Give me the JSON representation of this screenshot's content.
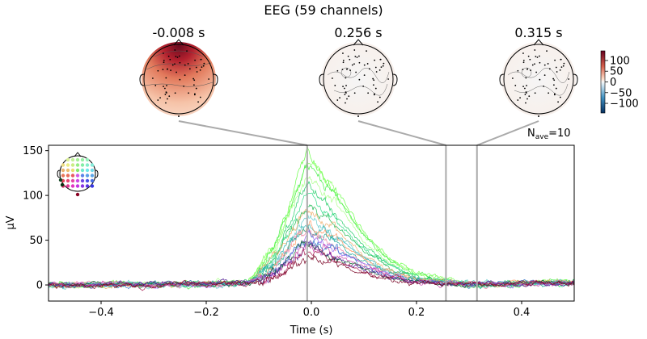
{
  "title": "EEG (59 channels)",
  "nave_label": "N",
  "nave_sub": "ave",
  "nave_value": "=10",
  "topomaps": [
    {
      "time_label": "-0.008 s",
      "time": -0.008,
      "pattern": "frontal-positive"
    },
    {
      "time_label": "0.256 s",
      "time": 0.256,
      "pattern": "near-zero"
    },
    {
      "time_label": "0.315 s",
      "time": 0.315,
      "pattern": "near-zero"
    }
  ],
  "colorbar": {
    "colormap": "RdBu_r",
    "range": [
      -145,
      145
    ],
    "ticks": [
      100,
      50,
      0,
      -50,
      -100
    ],
    "tick_labels": [
      "100",
      "50",
      "0",
      "−50",
      "−100"
    ]
  },
  "chart_data": {
    "type": "line",
    "xlabel": "Time (s)",
    "ylabel": "µV",
    "xlim": [
      -0.5,
      0.5
    ],
    "ylim": [
      -18,
      156
    ],
    "xticks": [
      -0.4,
      -0.2,
      0.0,
      0.2,
      0.4
    ],
    "xtick_labels": [
      "−0.4",
      "−0.2",
      "0.0",
      "0.2",
      "0.4"
    ],
    "yticks": [
      0,
      50,
      100,
      150
    ],
    "ytick_labels": [
      "0",
      "50",
      "100",
      "150"
    ],
    "grid": false,
    "vlines": [
      -0.008,
      0.256,
      0.315
    ],
    "x": [
      -0.5,
      -0.3,
      -0.12,
      -0.07,
      -0.008,
      0.05,
      0.1,
      0.15,
      0.2,
      0.3,
      0.4,
      0.5
    ],
    "series": [
      {
        "color": "#66ff44",
        "values": [
          0,
          1,
          3,
          44,
          148,
          104,
          59,
          30,
          12,
          0,
          2,
          3
        ]
      },
      {
        "color": "#88ff66",
        "values": [
          0,
          -1,
          3,
          43,
          142,
          99,
          57,
          28,
          11,
          1,
          2,
          2
        ]
      },
      {
        "color": "#44ee44",
        "values": [
          1,
          0,
          2,
          41,
          135,
          95,
          54,
          27,
          11,
          0,
          1,
          3
        ]
      },
      {
        "color": "#aaff88",
        "values": [
          0,
          1,
          3,
          38,
          125,
          88,
          50,
          25,
          10,
          -1,
          2,
          2
        ]
      },
      {
        "color": "#22cc66",
        "values": [
          -1,
          1,
          2,
          33,
          110,
          77,
          44,
          22,
          9,
          0,
          2,
          3
        ]
      },
      {
        "color": "#33dd88",
        "values": [
          0,
          0,
          3,
          30,
          100,
          70,
          40,
          20,
          8,
          1,
          1,
          2
        ]
      },
      {
        "color": "#22bb55",
        "values": [
          1,
          1,
          2,
          28,
          92,
          64,
          37,
          18,
          7,
          0,
          2,
          3
        ]
      },
      {
        "color": "#f0b070",
        "values": [
          0,
          -1,
          3,
          26,
          85,
          60,
          34,
          17,
          7,
          0,
          2,
          2
        ]
      },
      {
        "color": "#66cccc",
        "values": [
          0,
          1,
          2,
          24,
          80,
          56,
          32,
          16,
          6,
          1,
          1,
          3
        ]
      },
      {
        "color": "#44bbbb",
        "values": [
          -1,
          0,
          3,
          23,
          75,
          53,
          30,
          15,
          6,
          0,
          2,
          2
        ]
      },
      {
        "color": "#ff9966",
        "values": [
          0,
          1,
          2,
          21,
          70,
          49,
          28,
          14,
          6,
          0,
          2,
          3
        ]
      },
      {
        "color": "#22aa99",
        "values": [
          1,
          0,
          3,
          20,
          65,
          46,
          26,
          13,
          5,
          -1,
          1,
          2
        ]
      },
      {
        "color": "#ee88aa",
        "values": [
          0,
          1,
          2,
          18,
          60,
          42,
          24,
          12,
          5,
          0,
          2,
          3
        ]
      },
      {
        "color": "#9966ee",
        "values": [
          0,
          -1,
          3,
          17,
          55,
          39,
          22,
          11,
          4,
          1,
          1,
          2
        ]
      },
      {
        "color": "#3377cc",
        "values": [
          -1,
          0,
          2,
          16,
          52,
          36,
          21,
          10,
          4,
          0,
          2,
          3
        ]
      },
      {
        "color": "#cc44aa",
        "values": [
          0,
          1,
          3,
          14,
          48,
          34,
          19,
          10,
          4,
          0,
          1,
          2
        ]
      },
      {
        "color": "#116633",
        "values": [
          1,
          0,
          2,
          14,
          45,
          32,
          18,
          9,
          4,
          -1,
          2,
          3
        ]
      },
      {
        "color": "#552299",
        "values": [
          0,
          1,
          3,
          13,
          42,
          29,
          17,
          8,
          3,
          0,
          2,
          2
        ]
      },
      {
        "color": "#aa2255",
        "values": [
          0,
          -1,
          2,
          11,
          38,
          27,
          15,
          8,
          3,
          1,
          1,
          3
        ]
      },
      {
        "color": "#770022",
        "values": [
          -1,
          0,
          3,
          10,
          32,
          22,
          13,
          6,
          3,
          0,
          2,
          2
        ]
      }
    ]
  }
}
